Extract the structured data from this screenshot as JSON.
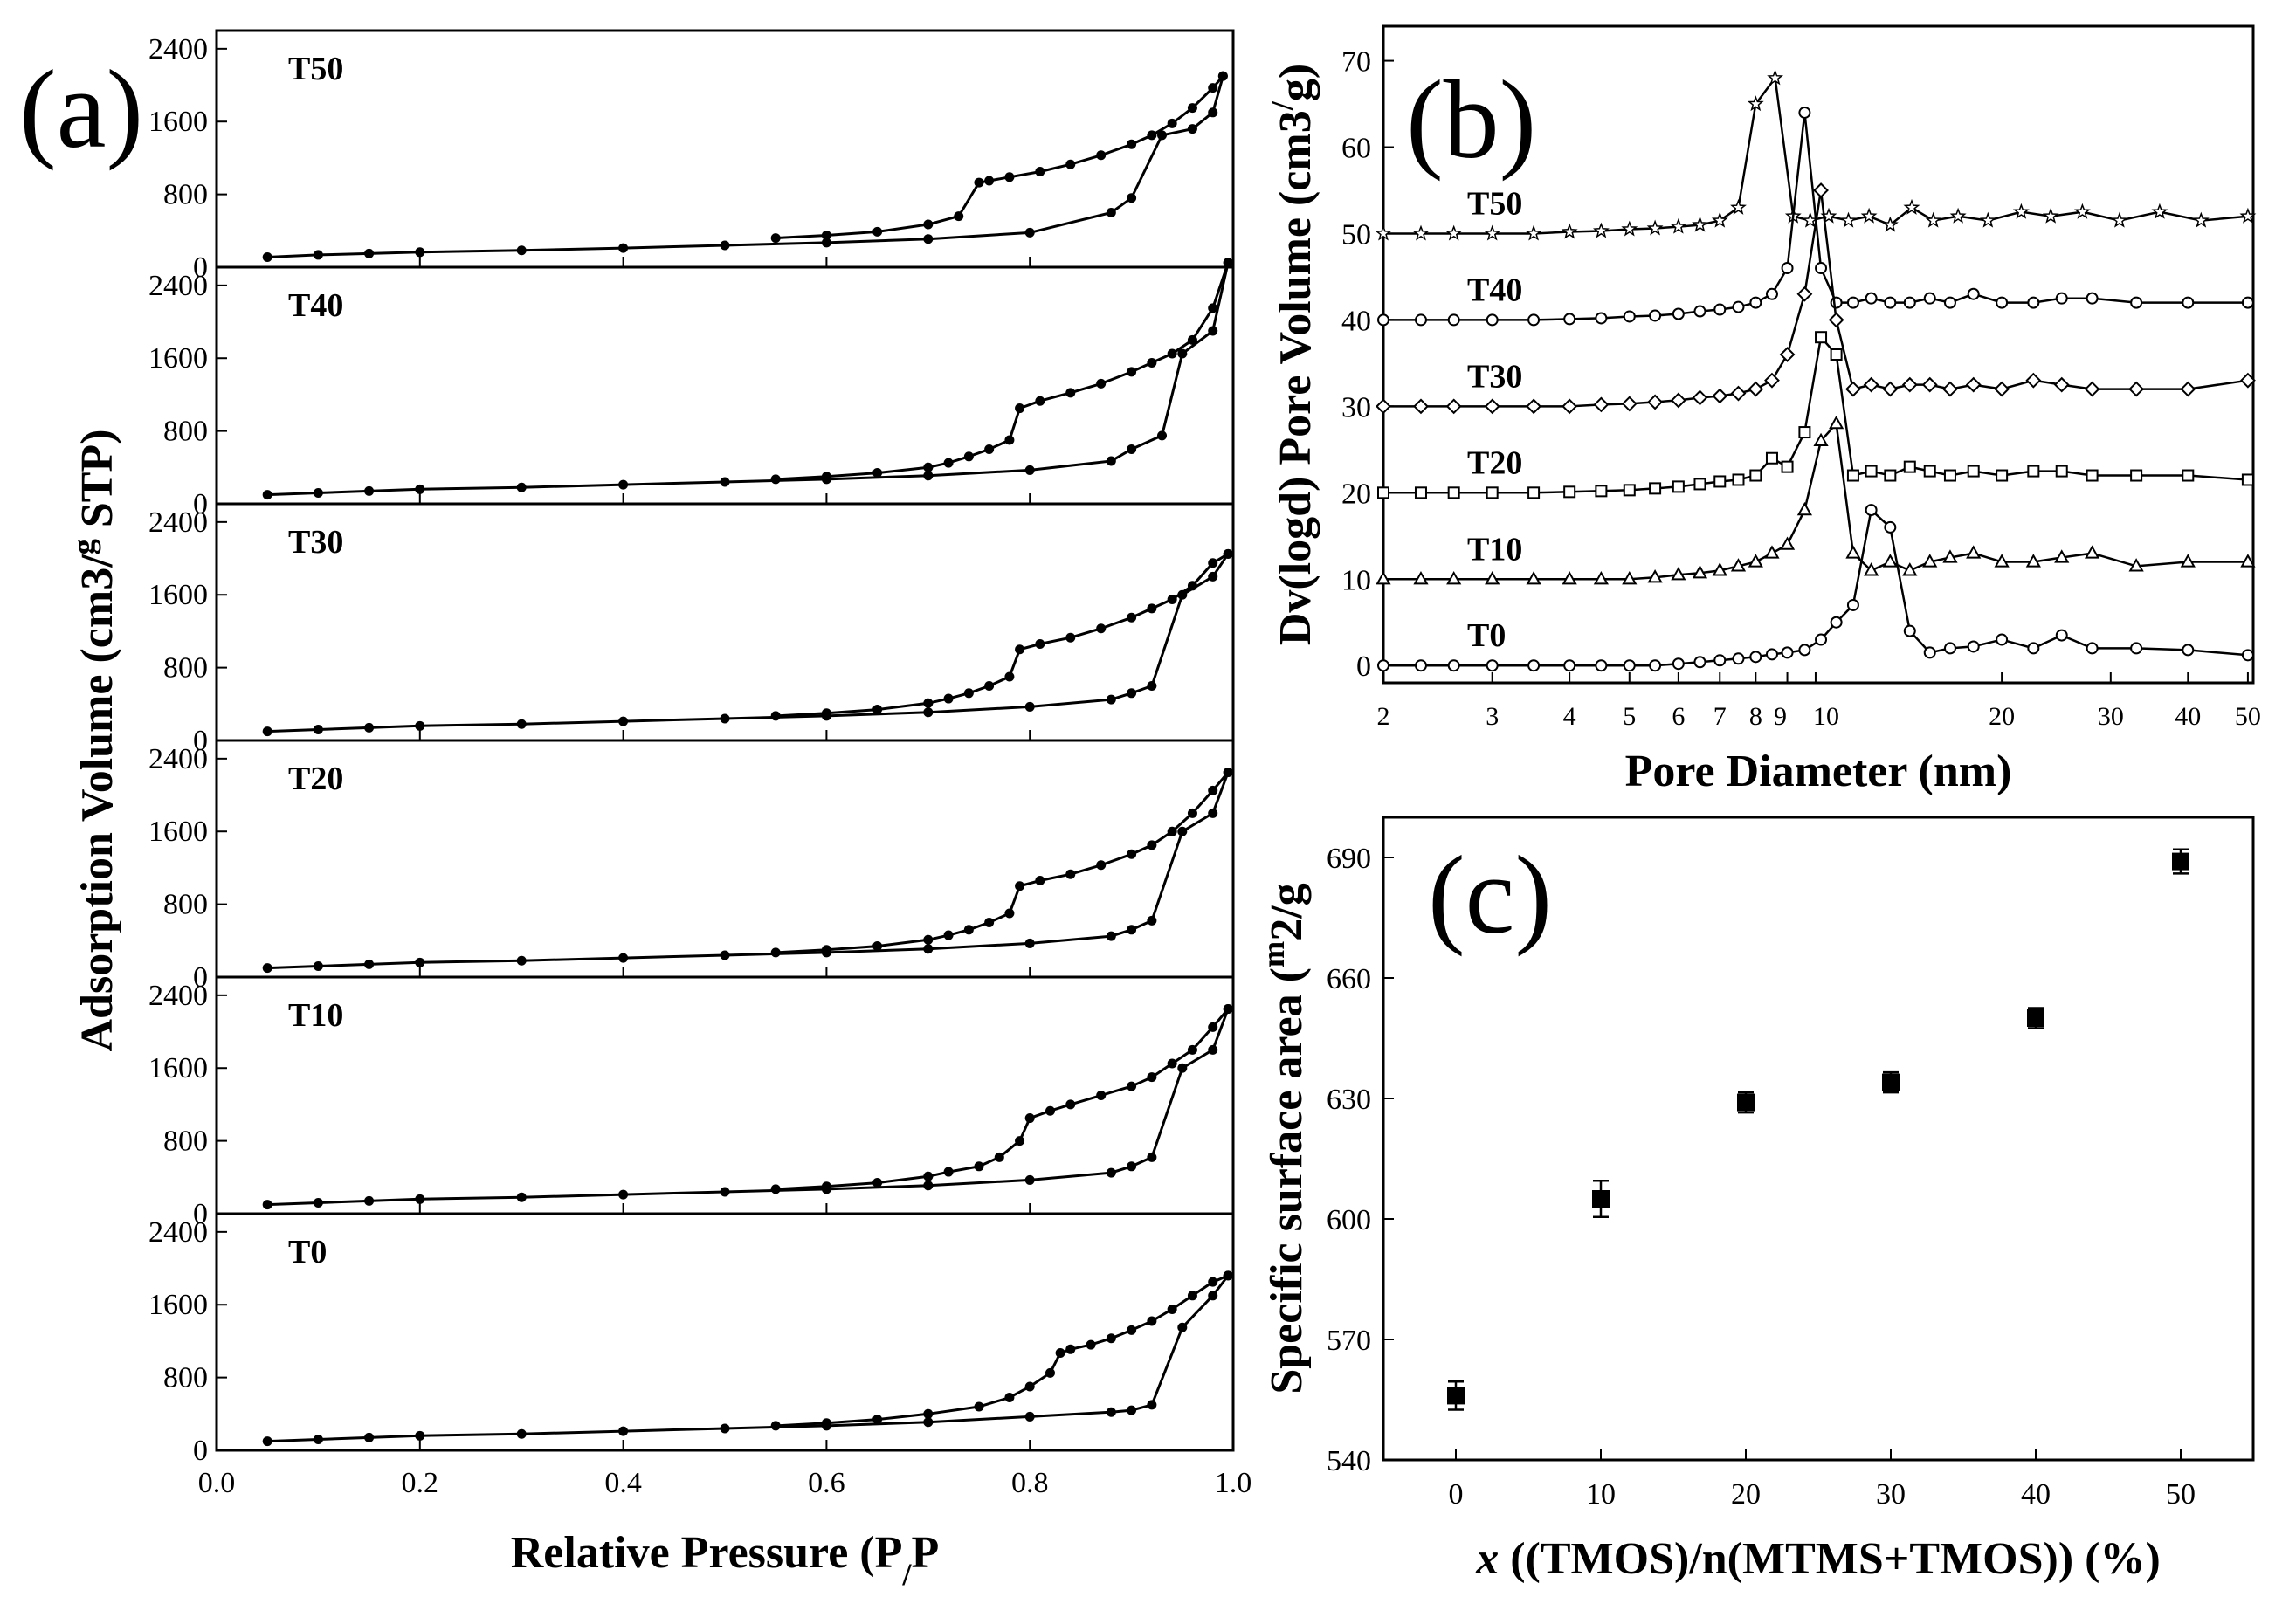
{
  "figure": {
    "panel_a_letter": "(a)",
    "panel_b_letter": "(b)",
    "panel_c_letter": "(c)"
  },
  "chart_data": [
    {
      "panel": "(a)",
      "type": "line",
      "title": "",
      "xlabel": "Relative Pressure (P/P0)",
      "ylabel": "Adsorption Volume (cm3/g STP)",
      "xlim": [
        0,
        1.0
      ],
      "ylim": [
        0,
        2600
      ],
      "x_ticks": [
        "0.0",
        "0.2",
        "0.4",
        "0.6",
        "0.8",
        "1.0"
      ],
      "y_ticks": [
        "0",
        "800",
        "1600",
        "2400"
      ],
      "grid": false,
      "marker": "filled-circle",
      "stacked_subplots_top_to_bottom": [
        "T50",
        "T40",
        "T30",
        "T20",
        "T10",
        "T0"
      ],
      "series": [
        {
          "name": "T50",
          "adsorption": {
            "x": [
              0.05,
              0.1,
              0.15,
              0.2,
              0.3,
              0.4,
              0.5,
              0.6,
              0.7,
              0.8,
              0.88,
              0.9,
              0.93,
              0.96,
              0.98,
              0.99
            ],
            "y": [
              110,
              135,
              150,
              165,
              185,
              210,
              240,
              270,
              310,
              380,
              600,
              760,
              1450,
              1520,
              1700,
              2100
            ]
          },
          "desorption": {
            "x": [
              0.99,
              0.98,
              0.96,
              0.94,
              0.92,
              0.9,
              0.87,
              0.84,
              0.81,
              0.78,
              0.76,
              0.75,
              0.73,
              0.7,
              0.65,
              0.6,
              0.55
            ],
            "y": [
              2100,
              1970,
              1750,
              1580,
              1450,
              1350,
              1230,
              1130,
              1050,
              990,
              950,
              930,
              560,
              470,
              390,
              350,
              320
            ]
          }
        },
        {
          "name": "T40",
          "adsorption": {
            "x": [
              0.05,
              0.1,
              0.15,
              0.2,
              0.3,
              0.4,
              0.5,
              0.6,
              0.7,
              0.8,
              0.88,
              0.9,
              0.93,
              0.95,
              0.98,
              0.995
            ],
            "y": [
              100,
              120,
              140,
              160,
              180,
              210,
              240,
              270,
              310,
              370,
              470,
              600,
              750,
              1650,
              1900,
              2650
            ]
          },
          "desorption": {
            "x": [
              0.995,
              0.98,
              0.96,
              0.94,
              0.92,
              0.9,
              0.87,
              0.84,
              0.81,
              0.79,
              0.78,
              0.76,
              0.74,
              0.72,
              0.7,
              0.65,
              0.6,
              0.55
            ],
            "y": [
              2650,
              2150,
              1800,
              1650,
              1550,
              1450,
              1320,
              1220,
              1130,
              1050,
              700,
              600,
              520,
              450,
              400,
              340,
              300,
              270
            ]
          }
        },
        {
          "name": "T30",
          "adsorption": {
            "x": [
              0.05,
              0.1,
              0.15,
              0.2,
              0.3,
              0.4,
              0.5,
              0.6,
              0.7,
              0.8,
              0.88,
              0.9,
              0.92,
              0.95,
              0.98,
              0.995
            ],
            "y": [
              100,
              120,
              140,
              160,
              180,
              210,
              240,
              270,
              310,
              370,
              450,
              520,
              600,
              1600,
              1800,
              2050
            ]
          },
          "desorption": {
            "x": [
              0.995,
              0.98,
              0.96,
              0.94,
              0.92,
              0.9,
              0.87,
              0.84,
              0.81,
              0.79,
              0.78,
              0.76,
              0.74,
              0.72,
              0.7,
              0.65,
              0.6,
              0.55
            ],
            "y": [
              2050,
              1950,
              1700,
              1550,
              1450,
              1350,
              1230,
              1130,
              1060,
              1000,
              700,
              600,
              520,
              460,
              410,
              340,
              300,
              270
            ]
          }
        },
        {
          "name": "T20",
          "adsorption": {
            "x": [
              0.05,
              0.1,
              0.15,
              0.2,
              0.3,
              0.4,
              0.5,
              0.6,
              0.7,
              0.8,
              0.88,
              0.9,
              0.92,
              0.95,
              0.98,
              0.995
            ],
            "y": [
              100,
              120,
              140,
              160,
              180,
              210,
              240,
              270,
              310,
              370,
              450,
              520,
              620,
              1600,
              1800,
              2250
            ]
          },
          "desorption": {
            "x": [
              0.995,
              0.98,
              0.96,
              0.94,
              0.92,
              0.9,
              0.87,
              0.84,
              0.81,
              0.79,
              0.78,
              0.76,
              0.74,
              0.72,
              0.7,
              0.65,
              0.6,
              0.55
            ],
            "y": [
              2250,
              2050,
              1800,
              1600,
              1450,
              1350,
              1230,
              1130,
              1060,
              1000,
              700,
              600,
              520,
              460,
              410,
              340,
              300,
              270
            ]
          }
        },
        {
          "name": "T10",
          "adsorption": {
            "x": [
              0.05,
              0.1,
              0.15,
              0.2,
              0.3,
              0.4,
              0.5,
              0.6,
              0.7,
              0.8,
              0.88,
              0.9,
              0.92,
              0.95,
              0.98,
              0.995
            ],
            "y": [
              100,
              120,
              140,
              160,
              180,
              210,
              240,
              270,
              310,
              370,
              450,
              520,
              620,
              1600,
              1800,
              2250
            ]
          },
          "desorption": {
            "x": [
              0.995,
              0.98,
              0.96,
              0.94,
              0.92,
              0.9,
              0.87,
              0.84,
              0.82,
              0.8,
              0.79,
              0.77,
              0.75,
              0.72,
              0.7,
              0.65,
              0.6,
              0.55
            ],
            "y": [
              2250,
              2050,
              1800,
              1650,
              1500,
              1400,
              1300,
              1200,
              1130,
              1050,
              800,
              620,
              520,
              460,
              410,
              340,
              300,
              270
            ]
          }
        },
        {
          "name": "T0",
          "adsorption": {
            "x": [
              0.05,
              0.1,
              0.15,
              0.2,
              0.3,
              0.4,
              0.5,
              0.6,
              0.7,
              0.8,
              0.88,
              0.9,
              0.92,
              0.95,
              0.98,
              0.995
            ],
            "y": [
              100,
              120,
              140,
              160,
              180,
              210,
              240,
              270,
              310,
              370,
              420,
              440,
              500,
              1350,
              1700,
              1920
            ]
          },
          "desorption": {
            "x": [
              0.995,
              0.98,
              0.96,
              0.94,
              0.92,
              0.9,
              0.88,
              0.86,
              0.84,
              0.83,
              0.82,
              0.8,
              0.78,
              0.75,
              0.7,
              0.65,
              0.6,
              0.55
            ],
            "y": [
              1920,
              1850,
              1700,
              1550,
              1420,
              1320,
              1230,
              1160,
              1110,
              1070,
              850,
              700,
              580,
              480,
              400,
              340,
              300,
              270
            ]
          }
        }
      ]
    },
    {
      "panel": "(b)",
      "type": "line",
      "title": "",
      "xlabel": "Pore Diameter (nm)",
      "ylabel": "Dv(logd) Pore Volume (cm3/g)",
      "xscale": "log",
      "xlim": [
        2,
        51
      ],
      "ylim": [
        -2,
        74
      ],
      "x_ticks": [
        "2",
        "3",
        "4",
        "5",
        "6",
        "7",
        "8",
        "9",
        "10",
        "20",
        "30",
        "40",
        "50"
      ],
      "y_ticks": [
        "0",
        "10",
        "20",
        "30",
        "40",
        "50",
        "60",
        "70"
      ],
      "grid": false,
      "series": [
        {
          "name": "T50",
          "marker": "star",
          "x": [
            2.0,
            2.3,
            2.6,
            3.0,
            3.5,
            4.0,
            4.5,
            5.0,
            5.5,
            6.0,
            6.5,
            7.0,
            7.5,
            8.0,
            8.6,
            9.2,
            9.8,
            10.5,
            11.3,
            12.2,
            13.2,
            14.3,
            15.5,
            17.0,
            19.0,
            21.5,
            24.0,
            27.0,
            31.0,
            36.0,
            42.0,
            50.0
          ],
          "y": [
            50,
            50,
            50,
            50,
            50,
            50.2,
            50.3,
            50.5,
            50.6,
            50.8,
            51,
            51.5,
            53,
            65,
            68,
            52,
            51.5,
            52,
            51.5,
            52,
            51,
            53,
            51.5,
            52,
            51.5,
            52.5,
            52,
            52.5,
            51.5,
            52.5,
            51.5,
            52
          ]
        },
        {
          "name": "T40",
          "marker": "open-circle",
          "x": [
            2.0,
            2.3,
            2.6,
            3.0,
            3.5,
            4.0,
            4.5,
            5.0,
            5.5,
            6.0,
            6.5,
            7.0,
            7.5,
            8.0,
            8.5,
            9.0,
            9.6,
            10.2,
            10.8,
            11.5,
            12.3,
            13.2,
            14.2,
            15.3,
            16.5,
            18.0,
            20.0,
            22.5,
            25.0,
            28.0,
            33.0,
            40.0,
            50.0
          ],
          "y": [
            40,
            40,
            40,
            40,
            40,
            40.1,
            40.2,
            40.4,
            40.5,
            40.7,
            41,
            41.2,
            41.5,
            42,
            43,
            46,
            64,
            46,
            42,
            42,
            42.5,
            42,
            42,
            42.5,
            42,
            43,
            42,
            42,
            42.5,
            42.5,
            42,
            42,
            42
          ]
        },
        {
          "name": "T30",
          "marker": "diamond",
          "x": [
            2.0,
            2.3,
            2.6,
            3.0,
            3.5,
            4.0,
            4.5,
            5.0,
            5.5,
            6.0,
            6.5,
            7.0,
            7.5,
            8.0,
            8.5,
            9.0,
            9.6,
            10.2,
            10.8,
            11.5,
            12.3,
            13.2,
            14.2,
            15.3,
            16.5,
            18.0,
            20.0,
            22.5,
            25.0,
            28.0,
            33.0,
            40.0,
            50.0
          ],
          "y": [
            30,
            30,
            30,
            30,
            30,
            30,
            30.2,
            30.3,
            30.5,
            30.7,
            31,
            31.2,
            31.5,
            32,
            33,
            36,
            43,
            55,
            40,
            32,
            32.5,
            32,
            32.5,
            32.5,
            32,
            32.5,
            32,
            33,
            32.5,
            32,
            32,
            32,
            33
          ]
        },
        {
          "name": "T20",
          "marker": "square",
          "x": [
            2.0,
            2.3,
            2.6,
            3.0,
            3.5,
            4.0,
            4.5,
            5.0,
            5.5,
            6.0,
            6.5,
            7.0,
            7.5,
            8.0,
            8.5,
            9.0,
            9.6,
            10.2,
            10.8,
            11.5,
            12.3,
            13.2,
            14.2,
            15.3,
            16.5,
            18.0,
            20.0,
            22.5,
            25.0,
            28.0,
            33.0,
            40.0,
            50.0
          ],
          "y": [
            20,
            20,
            20,
            20,
            20,
            20.1,
            20.2,
            20.3,
            20.5,
            20.7,
            21,
            21.3,
            21.5,
            22,
            24,
            23,
            27,
            38,
            36,
            22,
            22.5,
            22,
            23,
            22.5,
            22,
            22.5,
            22,
            22.5,
            22.5,
            22,
            22,
            22,
            21.5
          ]
        },
        {
          "name": "T10",
          "marker": "triangle",
          "x": [
            2.0,
            2.3,
            2.6,
            3.0,
            3.5,
            4.0,
            4.5,
            5.0,
            5.5,
            6.0,
            6.5,
            7.0,
            7.5,
            8.0,
            8.5,
            9.0,
            9.6,
            10.2,
            10.8,
            11.5,
            12.3,
            13.2,
            14.2,
            15.3,
            16.5,
            18.0,
            20.0,
            22.5,
            25.0,
            28.0,
            33.0,
            40.0,
            50.0
          ],
          "y": [
            10,
            10,
            10,
            10,
            10,
            10,
            10,
            10,
            10.2,
            10.5,
            10.7,
            11,
            11.5,
            12,
            13,
            14,
            18,
            26,
            28,
            13,
            11,
            12,
            11,
            12,
            12.5,
            13,
            12,
            12,
            12.5,
            13,
            11.5,
            12,
            12
          ]
        },
        {
          "name": "T0",
          "marker": "open-circle",
          "x": [
            2.0,
            2.3,
            2.6,
            3.0,
            3.5,
            4.0,
            4.5,
            5.0,
            5.5,
            6.0,
            6.5,
            7.0,
            7.5,
            8.0,
            8.5,
            9.0,
            9.6,
            10.2,
            10.8,
            11.5,
            12.3,
            13.2,
            14.2,
            15.3,
            16.5,
            18.0,
            20.0,
            22.5,
            25.0,
            28.0,
            33.0,
            40.0,
            50.0
          ],
          "y": [
            0,
            0,
            0,
            0,
            0,
            0,
            0,
            0,
            0,
            0.2,
            0.4,
            0.6,
            0.8,
            1,
            1.3,
            1.5,
            1.8,
            3,
            5,
            7,
            18,
            16,
            4,
            1.5,
            2,
            2.2,
            3,
            2,
            3.5,
            2,
            2,
            1.8,
            1.2
          ]
        }
      ]
    },
    {
      "panel": "(c)",
      "type": "scatter",
      "title": "",
      "xlabel": "x ((TMOS)/n(MTMS+TMOS)) (%)",
      "ylabel": "Specific surface area (m2/g)",
      "xlim": [
        -5,
        55
      ],
      "ylim": [
        540,
        700
      ],
      "x_ticks": [
        "0",
        "10",
        "20",
        "30",
        "40",
        "50"
      ],
      "y_ticks": [
        "540",
        "570",
        "600",
        "630",
        "660",
        "690"
      ],
      "grid": false,
      "marker": "filled-square",
      "x": [
        0,
        10,
        20,
        30,
        40,
        50
      ],
      "y": [
        556,
        605,
        629,
        634,
        650,
        689
      ],
      "error": [
        3.5,
        4.5,
        2.5,
        2.5,
        2.5,
        3
      ]
    }
  ]
}
